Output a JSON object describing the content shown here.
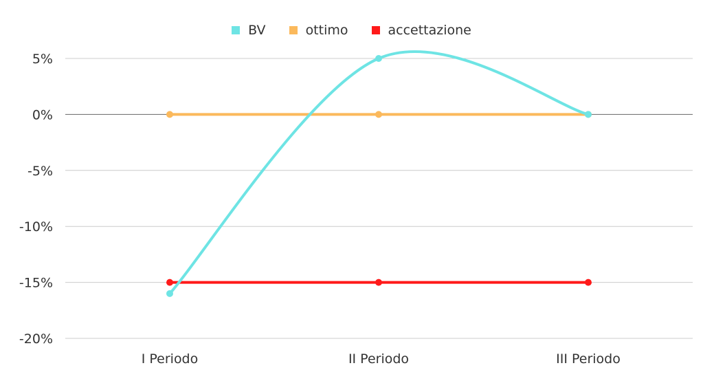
{
  "chart_data": {
    "type": "line",
    "categories": [
      "I Periodo",
      "II Periodo",
      "III Periodo"
    ],
    "series": [
      {
        "name": "BV",
        "values": [
          -16,
          5,
          0
        ],
        "color": "#6ee4e4",
        "smooth": true
      },
      {
        "name": "ottimo",
        "values": [
          0,
          0,
          0
        ],
        "color": "#fbb95c",
        "smooth": false
      },
      {
        "name": "accettazione",
        "values": [
          -15,
          -15,
          -15
        ],
        "color": "#ff1a1a",
        "smooth": false
      }
    ],
    "ylim": [
      -20,
      5
    ],
    "yticks": [
      5,
      0,
      -5,
      -10,
      -15,
      -20
    ],
    "ytick_labels": [
      "5%",
      "0%",
      "-5%",
      "-10%",
      "-15%",
      "-20%"
    ],
    "grid": true,
    "legend_position": "top-center"
  }
}
